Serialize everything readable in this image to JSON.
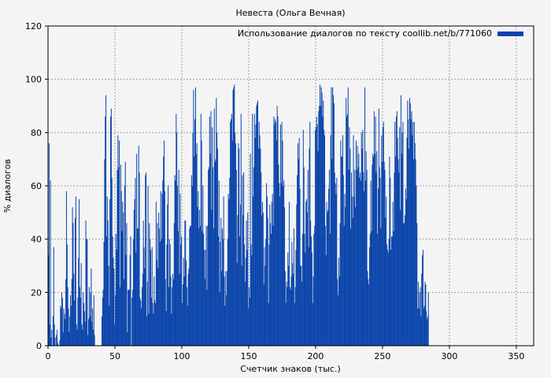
{
  "chart_data": {
    "type": "bar",
    "title": "Невеста (Ольга Вечная)",
    "xlabel": "Счетчик знаков (тыс.)",
    "ylabel": "% диалогов",
    "xlim": [
      0,
      363
    ],
    "ylim": [
      0,
      120
    ],
    "x_ticks": [
      0,
      50,
      100,
      150,
      200,
      250,
      300,
      350
    ],
    "y_ticks": [
      0,
      20,
      40,
      60,
      80,
      100,
      120
    ],
    "grid": true,
    "legend_position": "top-right",
    "series": [
      {
        "name": "Использование диалогов по тексту coollib.net/b/771060",
        "color": "#0a44aa",
        "x_step": 0.5,
        "values": [
          34,
          76,
          8,
          62,
          3,
          6,
          0,
          11,
          37,
          8,
          3,
          0,
          4,
          6,
          1,
          0,
          0,
          2,
          15,
          14,
          20,
          18,
          5,
          14,
          12,
          10,
          25,
          58,
          38,
          22,
          14,
          5,
          11,
          19,
          15,
          25,
          52,
          46,
          27,
          17,
          48,
          56,
          8,
          6,
          18,
          33,
          55,
          22,
          18,
          31,
          8,
          6,
          20,
          16,
          13,
          9,
          47,
          40,
          40,
          4,
          10,
          22,
          11,
          20,
          29,
          9,
          14,
          6,
          19,
          4,
          0,
          0,
          0,
          0,
          0,
          0,
          0,
          0,
          0,
          0,
          11,
          18,
          21,
          39,
          70,
          86,
          94,
          41,
          56,
          47,
          30,
          15,
          55,
          86,
          89,
          63,
          41,
          33,
          29,
          8,
          19,
          42,
          36,
          66,
          79,
          67,
          77,
          22,
          68,
          58,
          43,
          54,
          50,
          25,
          60,
          69,
          34,
          46,
          5,
          21,
          21,
          21,
          34,
          41,
          0,
          18,
          21,
          40,
          51,
          55,
          63,
          35,
          72,
          44,
          44,
          75,
          65,
          18,
          17,
          14,
          22,
          27,
          47,
          37,
          29,
          64,
          65,
          11,
          24,
          60,
          12,
          46,
          40,
          36,
          18,
          37,
          16,
          12,
          26,
          17,
          16,
          54,
          32,
          46,
          29,
          50,
          44,
          39,
          58,
          40,
          57,
          62,
          71,
          77,
          58,
          25,
          13,
          38,
          53,
          60,
          22,
          40,
          38,
          26,
          12,
          22,
          27,
          25,
          46,
          64,
          62,
          87,
          80,
          60,
          43,
          66,
          27,
          57,
          38,
          41,
          16,
          23,
          33,
          26,
          47,
          47,
          32,
          22,
          15,
          27,
          29,
          44,
          45,
          45,
          64,
          60,
          80,
          96,
          71,
          85,
          97,
          72,
          76,
          52,
          58,
          44,
          51,
          45,
          87,
          77,
          43,
          60,
          42,
          36,
          25,
          36,
          45,
          21,
          45,
          66,
          67,
          86,
          72,
          88,
          51,
          82,
          67,
          44,
          89,
          69,
          70,
          93,
          80,
          74,
          41,
          62,
          20,
          39,
          48,
          28,
          44,
          40,
          56,
          26,
          15,
          28,
          19,
          28,
          40,
          57,
          55,
          63,
          84,
          85,
          87,
          77,
          96,
          97,
          98,
          80,
          76,
          66,
          31,
          49,
          76,
          74,
          41,
          53,
          87,
          30,
          64,
          49,
          65,
          38,
          24,
          33,
          47,
          36,
          50,
          14,
          22,
          18,
          72,
          38,
          34,
          87,
          56,
          67,
          87,
          78,
          83,
          90,
          91,
          92,
          74,
          84,
          79,
          74,
          65,
          49,
          54,
          50,
          23,
          37,
          30,
          40,
          61,
          56,
          48,
          16,
          38,
          53,
          46,
          42,
          54,
          57,
          45,
          86,
          83,
          85,
          84,
          77,
          90,
          86,
          68,
          61,
          56,
          83,
          61,
          84,
          77,
          60,
          62,
          52,
          28,
          16,
          24,
          22,
          35,
          30,
          54,
          22,
          21,
          26,
          39,
          31,
          27,
          44,
          16,
          22,
          36,
          53,
          64,
          76,
          70,
          78,
          59,
          30,
          30,
          24,
          42,
          81,
          67,
          42,
          35,
          54,
          55,
          50,
          66,
          37,
          74,
          84,
          47,
          41,
          35,
          16,
          26,
          42,
          45,
          81,
          82,
          86,
          83,
          73,
          88,
          90,
          98,
          90,
          97,
          95,
          86,
          92,
          81,
          79,
          45,
          34,
          54,
          50,
          51,
          59,
          66,
          42,
          79,
          97,
          70,
          97,
          94,
          91,
          65,
          61,
          57,
          63,
          25,
          19,
          33,
          26,
          46,
          77,
          71,
          71,
          79,
          64,
          45,
          57,
          52,
          93,
          86,
          87,
          97,
          66,
          82,
          74,
          44,
          65,
          56,
          48,
          79,
          56,
          66,
          52,
          77,
          66,
          75,
          67,
          72,
          63,
          65,
          62,
          80,
          74,
          81,
          65,
          58,
          97,
          62,
          73,
          66,
          28,
          25,
          23,
          37,
          42,
          62,
          43,
          68,
          72,
          71,
          88,
          72,
          86,
          65,
          73,
          42,
          59,
          89,
          67,
          63,
          44,
          79,
          69,
          82,
          84,
          69,
          66,
          48,
          56,
          38,
          36,
          35,
          40,
          71,
          63,
          36,
          41,
          41,
          54,
          43,
          65,
          84,
          71,
          86,
          88,
          78,
          70,
          65,
          82,
          51,
          94,
          72,
          80,
          84,
          46,
          46,
          49,
          59,
          55,
          78,
          92,
          85,
          74,
          93,
          91,
          85,
          88,
          79,
          84,
          70,
          84,
          76,
          70,
          60,
          46,
          14,
          24,
          14,
          20,
          22,
          11,
          27,
          34,
          36,
          14,
          15,
          24,
          23,
          13,
          10,
          11,
          20
        ]
      }
    ]
  }
}
